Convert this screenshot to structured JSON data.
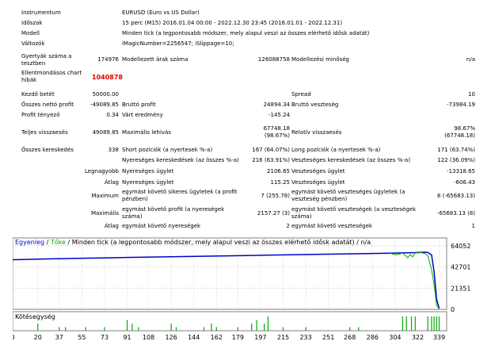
{
  "report": {
    "instrument_label": "Instrumentum",
    "instrument_value": "EURUSD (Euro vs US Dollar)",
    "period_label": "Időszak",
    "period_value": "15 perc (M15) 2016.01.04 00:00 - 2022.12.30 23:45 (2016.01.01 - 2022.12.31)",
    "model_label": "Modell",
    "model_value": "Minden tick (a legpontosabb módszer, mely alapul veszi az összes elérhető idősk adatát)",
    "variables_label": "Változók",
    "variables_value": "iMagicNumber=2256547; iSlippage=10;",
    "bars_label": "Gyertyák száma a tesztben",
    "bars_value": "174976",
    "ticks_label": "Modellezett árak száma",
    "ticks_value": "126088758",
    "quality_label": "Modellezési minőség",
    "quality_value": "n/a",
    "errors_label": "Ellentmondásos chart hibák",
    "errors_value": "1040878",
    "deposit_label": "Kezdő betét",
    "deposit_value": "50000.00",
    "spread_label": "Spread",
    "spread_value": "10",
    "net_profit_label": "Összes nettó profit",
    "net_profit_value": "-49089.85",
    "gross_profit_label": "Bruttó profit",
    "gross_profit_value": "24894.34",
    "gross_loss_label": "Bruttó veszteség",
    "gross_loss_value": "-73984.19",
    "profit_factor_label": "Profit tényező",
    "profit_factor_value": "0.34",
    "expected_payoff_label": "Várt eredmény",
    "expected_payoff_value": "-145.24",
    "abs_dd_label": "Teljes visszaesés",
    "abs_dd_value": "49089.85",
    "max_dd_label": "Maximális lehívás",
    "max_dd_value_1": "67748.18",
    "max_dd_value_2": "(98.67%)",
    "rel_dd_label": "Relatív visszaesés",
    "rel_dd_value_1": "98.67%",
    "rel_dd_value_2": "(67748.18)",
    "total_trades_label": "Összes kereskedés",
    "total_trades_value": "338",
    "short_label": "Short pozíciók (a nyertesek %-a)",
    "short_value": "167 (64.07%)",
    "long_label": "Long pozíciók (a nyertesek %-a)",
    "long_value": "171 (63.74%)",
    "profit_trades_label": "Nyereséges kereskedések (az összes %-a)",
    "profit_trades_value": "216 (63.91%)",
    "loss_trades_label": "Veszteséges kereskedések (az összes %-a)",
    "loss_trades_value": "122 (36.09%)",
    "largest_label": "Legnagyobb",
    "largest_profit_label": "Nyereséges ügylet",
    "largest_profit_value": "2106.65",
    "largest_loss_label": "Veszteséges ügylet",
    "largest_loss_value": "-13318.65",
    "average_label": "Átlag",
    "avg_profit_label": "Nyereséges ügylet",
    "avg_profit_value": "115.25",
    "avg_loss_label": "Veszteséges ügylet",
    "avg_loss_value": "-606.43",
    "maximum_label": "Maximum",
    "max_cons_wins_label": "egymást követő sikeres ügyletek (a profit pénzben)",
    "max_cons_wins_value": "7 (255.78)",
    "max_cons_losses_label": "egymást követő veszteséges ügyletek (a veszteség pénzben)",
    "max_cons_losses_value": "8 (-65683.13)",
    "maximal_label": "Maximális",
    "maximal_profit_label": "egymást követő profit (a nyereségek száma)",
    "maximal_profit_value": "2157.27 (3)",
    "maximal_loss_label": "egymást követő veszteségek (a veszteségek száma)",
    "maximal_loss_value": "-65683.13 (8)",
    "avg2_label": "Átlag",
    "avg_cons_wins_label": "egymást követő nyereségek",
    "avg_cons_wins_value": "2",
    "avg_cons_losses_label": "egymást követő veszteségek",
    "avg_cons_losses_value": "1"
  },
  "chart_data": {
    "type": "line",
    "title": "Egyenleg / Tőke / Minden tick (a legpontosabb módszer, mely alapul veszi az összes elérhető idősk adatát) / n/a",
    "title_parts": {
      "balance": "Egyenleg",
      "sep1": " / ",
      "equity": "Tőke",
      "rest": " / Minden tick (a legpontosabb módszer, mely alapul veszi az összes elérhető idősk adatát) / n/a"
    },
    "ylabel_ticks": [
      "64052",
      "42701",
      "21351",
      "0"
    ],
    "ylim": [
      0,
      72000
    ],
    "xlim": [
      0,
      345
    ],
    "x_ticks": [
      "0",
      "20",
      "37",
      "55",
      "73",
      "91",
      "108",
      "126",
      "144",
      "162",
      "179",
      "197",
      "215",
      "233",
      "251",
      "268",
      "286",
      "304",
      "322",
      "339"
    ],
    "x_tick_values": [
      0,
      20,
      37,
      55,
      73,
      91,
      108,
      126,
      144,
      162,
      179,
      197,
      215,
      233,
      251,
      268,
      286,
      304,
      322,
      339
    ],
    "volume_label": "Kötésegység",
    "colors": {
      "balance": "#0000cc",
      "equity": "#00aa00",
      "grid": "#c0c0c0"
    },
    "series": [
      {
        "name": "Egyenleg",
        "x": [
          0,
          10,
          20,
          30,
          40,
          50,
          60,
          70,
          80,
          90,
          100,
          110,
          120,
          130,
          140,
          150,
          160,
          170,
          180,
          190,
          200,
          210,
          220,
          230,
          240,
          250,
          260,
          270,
          280,
          290,
          300,
          310,
          320,
          325,
          328,
          330,
          333,
          335,
          337,
          339
        ],
        "values": [
          50000,
          50300,
          50600,
          50900,
          51100,
          51400,
          51600,
          51800,
          52000,
          52300,
          52500,
          52700,
          52900,
          53100,
          53300,
          53500,
          53700,
          53900,
          54100,
          54300,
          54600,
          54800,
          55000,
          55200,
          55400,
          55600,
          55800,
          56000,
          56200,
          56400,
          56600,
          56900,
          57200,
          57500,
          57600,
          57300,
          55000,
          38000,
          10000,
          910
        ]
      },
      {
        "name": "Tőke",
        "x": [
          300,
          305,
          310,
          314,
          316,
          318,
          320,
          323,
          325,
          328,
          330,
          333,
          335,
          337,
          339
        ],
        "values": [
          56500,
          55000,
          56700,
          52000,
          55500,
          53000,
          56800,
          57000,
          57200,
          56000,
          54000,
          40000,
          25000,
          4000,
          400
        ]
      }
    ],
    "volume_bars": [
      {
        "x": 20,
        "v": 2
      },
      {
        "x": 37,
        "v": 1
      },
      {
        "x": 42,
        "v": 1
      },
      {
        "x": 58,
        "v": 1
      },
      {
        "x": 73,
        "v": 1
      },
      {
        "x": 91,
        "v": 3
      },
      {
        "x": 95,
        "v": 2
      },
      {
        "x": 100,
        "v": 1
      },
      {
        "x": 126,
        "v": 2
      },
      {
        "x": 130,
        "v": 1
      },
      {
        "x": 152,
        "v": 1
      },
      {
        "x": 158,
        "v": 2
      },
      {
        "x": 162,
        "v": 1
      },
      {
        "x": 179,
        "v": 1
      },
      {
        "x": 190,
        "v": 2
      },
      {
        "x": 194,
        "v": 3
      },
      {
        "x": 200,
        "v": 2
      },
      {
        "x": 203,
        "v": 4
      },
      {
        "x": 215,
        "v": 1
      },
      {
        "x": 233,
        "v": 1
      },
      {
        "x": 268,
        "v": 1
      },
      {
        "x": 275,
        "v": 1
      },
      {
        "x": 310,
        "v": 4
      },
      {
        "x": 313,
        "v": 4
      },
      {
        "x": 317,
        "v": 4
      },
      {
        "x": 320,
        "v": 4
      },
      {
        "x": 330,
        "v": 4
      },
      {
        "x": 333,
        "v": 4
      },
      {
        "x": 335,
        "v": 4
      },
      {
        "x": 337,
        "v": 4
      },
      {
        "x": 339,
        "v": 4
      }
    ]
  }
}
